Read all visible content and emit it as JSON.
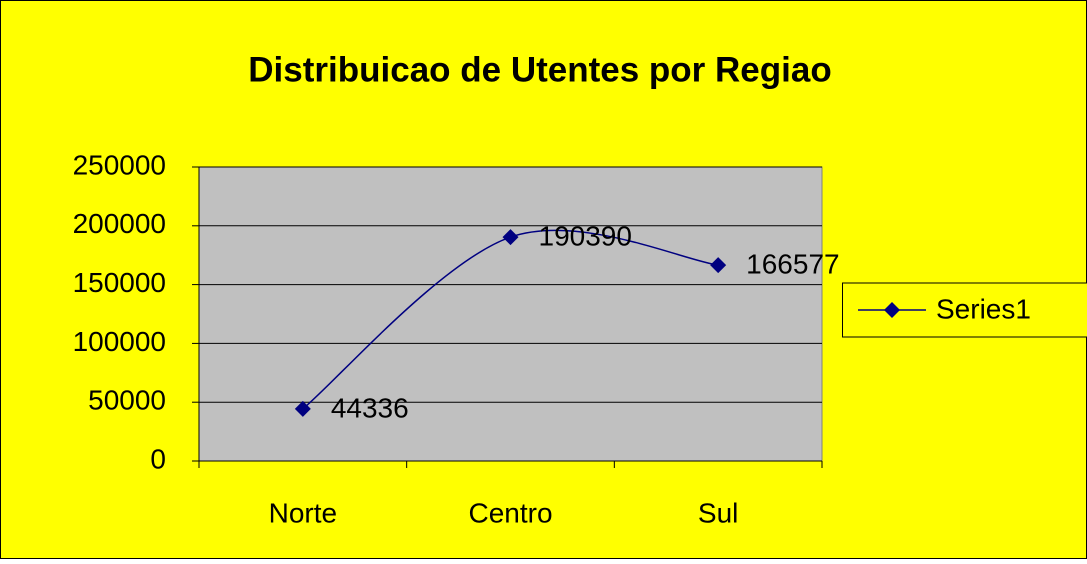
{
  "chart_data": {
    "type": "line",
    "title": "Distribuicao de Utentes por Regiao",
    "categories": [
      "Norte",
      "Centro",
      "Sul"
    ],
    "series": [
      {
        "name": "Series1",
        "color": "#000080",
        "values": [
          44336,
          190390,
          166577
        ]
      }
    ],
    "ylim": [
      0,
      250000
    ],
    "yticks": [
      0,
      50000,
      100000,
      150000,
      200000,
      250000
    ],
    "grid": true,
    "smooth": true,
    "data_labels": true,
    "legend": "right",
    "background": "#ffff00",
    "plot_background": "#c0c0c0"
  }
}
